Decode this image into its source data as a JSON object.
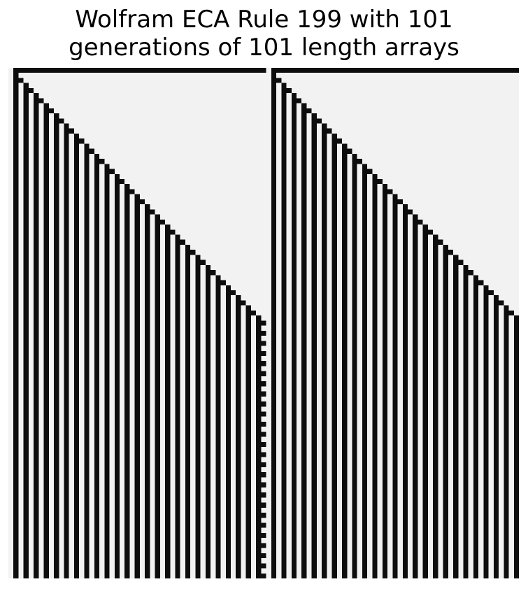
{
  "figure": {
    "title_line1": "Wolfram ECA Rule 199 with 101",
    "title_line2": "generations of 101 length arrays"
  },
  "automaton": {
    "rule": 199,
    "generations": 101,
    "width": 101,
    "initial_live_cells": [
      0,
      51
    ],
    "boundary": "live",
    "colors": {
      "live": "#f2f2f2",
      "dead": "#0d0d0d"
    }
  }
}
